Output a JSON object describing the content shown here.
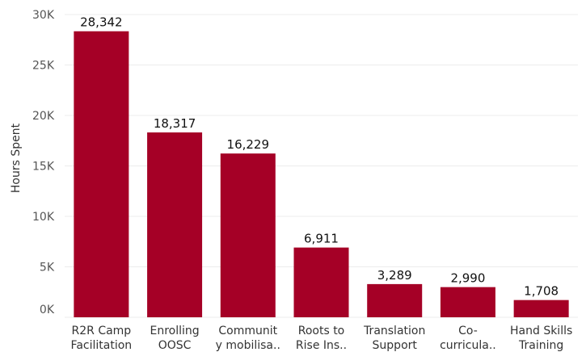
{
  "chart_data": {
    "type": "bar",
    "categories": [
      [
        "R2R Camp",
        "Facilitation"
      ],
      [
        "Enrolling",
        "OOSC"
      ],
      [
        "Communit",
        "y mobilisa.."
      ],
      [
        "Roots to",
        "Rise Ins.."
      ],
      [
        "Translation",
        "Support"
      ],
      [
        "Co-",
        "curricula.."
      ],
      [
        "Hand Skills",
        "Training"
      ]
    ],
    "values": [
      28342,
      18317,
      16229,
      6911,
      3289,
      2990,
      1708
    ],
    "data_labels": [
      "28,342",
      "18,317",
      "16,229",
      "6,911",
      "3,289",
      "2,990",
      "1,708"
    ],
    "ylabel": "Hours Spent",
    "yticks": [
      0,
      5000,
      10000,
      15000,
      20000,
      25000,
      30000
    ],
    "ytick_labels": [
      "0K",
      "5K",
      "10K",
      "15K",
      "20K",
      "25K",
      "30K"
    ],
    "ylim": [
      0,
      30000
    ],
    "grid": true,
    "bar_color": "#A50026"
  }
}
